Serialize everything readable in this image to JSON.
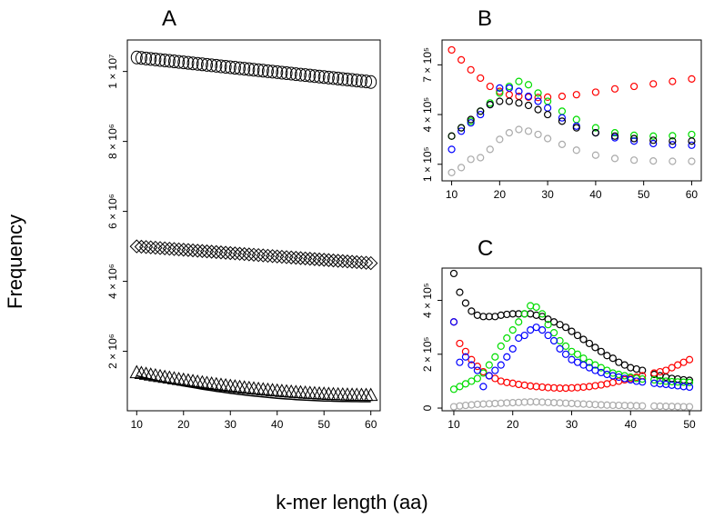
{
  "figure": {
    "ylabel": "Frequency",
    "xlabel": "k-mer length (aa)"
  },
  "chart_data": [
    {
      "type": "scatter",
      "panel": "A",
      "title": "A",
      "xlim": [
        8,
        62
      ],
      "ylim": [
        300000,
        10900000
      ],
      "x_ticks": [
        10,
        20,
        30,
        40,
        50,
        60
      ],
      "y_ticks": [
        {
          "value": 2000000,
          "label": "2 × 10⁶"
        },
        {
          "value": 4000000,
          "label": "4 × 10⁶"
        },
        {
          "value": 6000000,
          "label": "6 × 10⁶"
        },
        {
          "value": 8000000,
          "label": "8 × 10⁶"
        },
        {
          "value": 10000000,
          "label": "1 × 10⁷"
        }
      ],
      "series": [
        {
          "marker": "circle",
          "x_start": 10,
          "x_end": 60,
          "y_start": 10400000,
          "y_end": 9700000
        },
        {
          "marker": "diamond",
          "x_start": 10,
          "x_end": 60,
          "y_start": 5000000,
          "y_end": 4520000
        },
        {
          "marker": "triangle",
          "x_start": 10,
          "x_end": 60,
          "y_start": 1350000,
          "y_end": 700000
        },
        {
          "marker": "line",
          "x_start": 10,
          "x_end": 60,
          "y_start": 1300000,
          "y_end": 560000
        }
      ],
      "grid": false
    },
    {
      "type": "scatter",
      "panel": "B",
      "title": "B",
      "xlim": [
        8,
        62
      ],
      "ylim": [
        0,
        850000
      ],
      "x_ticks": [
        10,
        20,
        30,
        40,
        50,
        60
      ],
      "y_ticks": [
        {
          "value": 100000,
          "label": "1 × 10⁵"
        },
        {
          "value": 400000,
          "label": "4 × 10⁵"
        },
        {
          "value": 700000,
          "label": "7 × 10⁵"
        }
      ],
      "series": [
        {
          "color": "#ff0000",
          "x": [
            10,
            12,
            14,
            16,
            18,
            20,
            22,
            24,
            26,
            28,
            30,
            33,
            36,
            40,
            44,
            48,
            52,
            56,
            60
          ],
          "y": [
            790000,
            730000,
            670000,
            620000,
            570000,
            540000,
            520000,
            510000,
            505000,
            503000,
            505000,
            510000,
            520000,
            535000,
            555000,
            570000,
            585000,
            600000,
            615000
          ]
        },
        {
          "color": "#00dd00",
          "x": [
            10,
            12,
            14,
            16,
            18,
            20,
            22,
            24,
            26,
            28,
            30,
            33,
            36,
            40,
            44,
            48,
            52,
            56,
            60
          ],
          "y": [
            270000,
            320000,
            360000,
            420000,
            470000,
            530000,
            570000,
            600000,
            580000,
            530000,
            480000,
            420000,
            370000,
            320000,
            290000,
            275000,
            270000,
            272000,
            280000
          ]
        },
        {
          "color": "#0000ff",
          "x": [
            10,
            12,
            14,
            16,
            18,
            20,
            22,
            24,
            26,
            28,
            30,
            33,
            36,
            40,
            44,
            48,
            52,
            56,
            60
          ],
          "y": [
            190000,
            300000,
            350000,
            400000,
            460000,
            560000,
            560000,
            540000,
            510000,
            480000,
            440000,
            380000,
            330000,
            290000,
            260000,
            240000,
            225000,
            218000,
            215000
          ]
        },
        {
          "color": "#000000",
          "x": [
            10,
            12,
            14,
            16,
            18,
            20,
            22,
            24,
            26,
            28,
            30,
            33,
            36,
            40,
            44,
            48,
            52,
            56,
            60
          ],
          "y": [
            270000,
            320000,
            370000,
            420000,
            460000,
            480000,
            480000,
            470000,
            455000,
            430000,
            400000,
            360000,
            320000,
            290000,
            270000,
            255000,
            245000,
            240000,
            240000
          ]
        },
        {
          "color": "#aaaaaa",
          "x": [
            10,
            12,
            14,
            16,
            18,
            20,
            22,
            24,
            26,
            28,
            30,
            33,
            36,
            40,
            44,
            48,
            52,
            56,
            60
          ],
          "y": [
            50000,
            80000,
            130000,
            140000,
            190000,
            250000,
            290000,
            310000,
            300000,
            280000,
            255000,
            220000,
            185000,
            155000,
            135000,
            125000,
            120000,
            118000,
            118000
          ]
        }
      ],
      "grid": false
    },
    {
      "type": "scatter",
      "panel": "C",
      "title": "C",
      "xlim": [
        8,
        52
      ],
      "ylim": [
        -10000,
        520000
      ],
      "x_ticks": [
        10,
        20,
        30,
        40,
        50
      ],
      "y_ticks": [
        {
          "value": 0,
          "label": "0"
        },
        {
          "value": 200000,
          "label": "2 × 10⁵"
        },
        {
          "value": 400000,
          "label": "4 × 10⁵"
        }
      ],
      "series": [
        {
          "color": "#000000",
          "x": [
            10,
            11,
            12,
            13,
            14,
            15,
            16,
            17,
            18,
            19,
            20,
            21,
            22,
            23,
            24,
            25,
            26,
            27,
            28,
            29,
            30,
            31,
            32,
            33,
            34,
            35,
            36,
            37,
            38,
            39,
            40,
            41,
            42,
            44,
            45,
            46,
            47,
            48,
            49,
            50
          ],
          "y": [
            500000,
            430000,
            390000,
            360000,
            345000,
            340000,
            340000,
            340000,
            345000,
            348000,
            350000,
            350000,
            350000,
            350000,
            345000,
            340000,
            330000,
            320000,
            310000,
            300000,
            285000,
            270000,
            255000,
            240000,
            225000,
            210000,
            195000,
            185000,
            170000,
            160000,
            150000,
            145000,
            140000,
            125000,
            120000,
            115000,
            110000,
            108000,
            105000,
            103000
          ]
        },
        {
          "color": "#ff0000",
          "x": [
            10,
            11,
            12,
            13,
            14,
            15,
            16,
            17,
            18,
            19,
            20,
            21,
            22,
            23,
            24,
            25,
            26,
            27,
            28,
            29,
            30,
            31,
            32,
            33,
            34,
            35,
            36,
            37,
            38,
            39,
            40,
            41,
            42,
            44,
            45,
            46,
            47,
            48,
            49,
            50
          ],
          "y": [
            320000,
            240000,
            210000,
            180000,
            155000,
            135000,
            120000,
            110000,
            100000,
            95000,
            92000,
            88000,
            85000,
            82000,
            80000,
            78000,
            76000,
            75000,
            74000,
            74000,
            75000,
            76000,
            78000,
            80000,
            83000,
            86000,
            90000,
            95000,
            100000,
            105000,
            110000,
            115000,
            120000,
            130000,
            135000,
            140000,
            150000,
            160000,
            170000,
            180000
          ]
        },
        {
          "color": "#00dd00",
          "x": [
            10,
            11,
            12,
            13,
            14,
            15,
            16,
            17,
            18,
            19,
            20,
            21,
            22,
            23,
            24,
            25,
            26,
            27,
            28,
            29,
            30,
            31,
            32,
            33,
            34,
            35,
            36,
            37,
            38,
            39,
            40,
            41,
            42,
            44,
            45,
            46,
            47,
            48,
            49,
            50
          ],
          "y": [
            70000,
            80000,
            90000,
            100000,
            110000,
            130000,
            160000,
            190000,
            230000,
            260000,
            290000,
            320000,
            350000,
            380000,
            375000,
            350000,
            310000,
            280000,
            250000,
            230000,
            210000,
            200000,
            185000,
            170000,
            160000,
            150000,
            140000,
            130000,
            125000,
            120000,
            115000,
            110000,
            108000,
            105000,
            102000,
            100000,
            98000,
            97000,
            96000,
            95000
          ]
        },
        {
          "color": "#0000ff",
          "x": [
            10,
            11,
            12,
            13,
            14,
            15,
            16,
            17,
            18,
            19,
            20,
            21,
            22,
            23,
            24,
            25,
            26,
            27,
            28,
            29,
            30,
            31,
            32,
            33,
            34,
            35,
            36,
            37,
            38,
            39,
            40,
            41,
            42,
            44,
            45,
            46,
            47,
            48,
            49,
            50
          ],
          "y": [
            320000,
            170000,
            190000,
            160000,
            140000,
            80000,
            120000,
            140000,
            160000,
            190000,
            220000,
            260000,
            270000,
            290000,
            300000,
            290000,
            270000,
            250000,
            220000,
            200000,
            180000,
            170000,
            160000,
            150000,
            140000,
            132000,
            125000,
            120000,
            115000,
            110000,
            105000,
            100000,
            97000,
            92000,
            90000,
            88000,
            85000,
            83000,
            80000,
            78000
          ]
        },
        {
          "color": "#aaaaaa",
          "x": [
            10,
            11,
            12,
            13,
            14,
            15,
            16,
            17,
            18,
            19,
            20,
            21,
            22,
            23,
            24,
            25,
            26,
            27,
            28,
            29,
            30,
            31,
            32,
            33,
            34,
            35,
            36,
            37,
            38,
            39,
            40,
            41,
            42,
            44,
            45,
            46,
            47,
            48,
            49,
            50
          ],
          "y": [
            5000,
            8000,
            10000,
            12000,
            14000,
            15000,
            16000,
            17000,
            18000,
            19000,
            20000,
            21000,
            22000,
            23000,
            23000,
            22000,
            21000,
            20000,
            19000,
            18000,
            17000,
            16000,
            15000,
            14000,
            13000,
            12000,
            11000,
            10500,
            10000,
            9500,
            9000,
            8500,
            8000,
            7500,
            7000,
            6500,
            6000,
            5500,
            5000,
            5000
          ]
        }
      ],
      "grid": false
    }
  ]
}
